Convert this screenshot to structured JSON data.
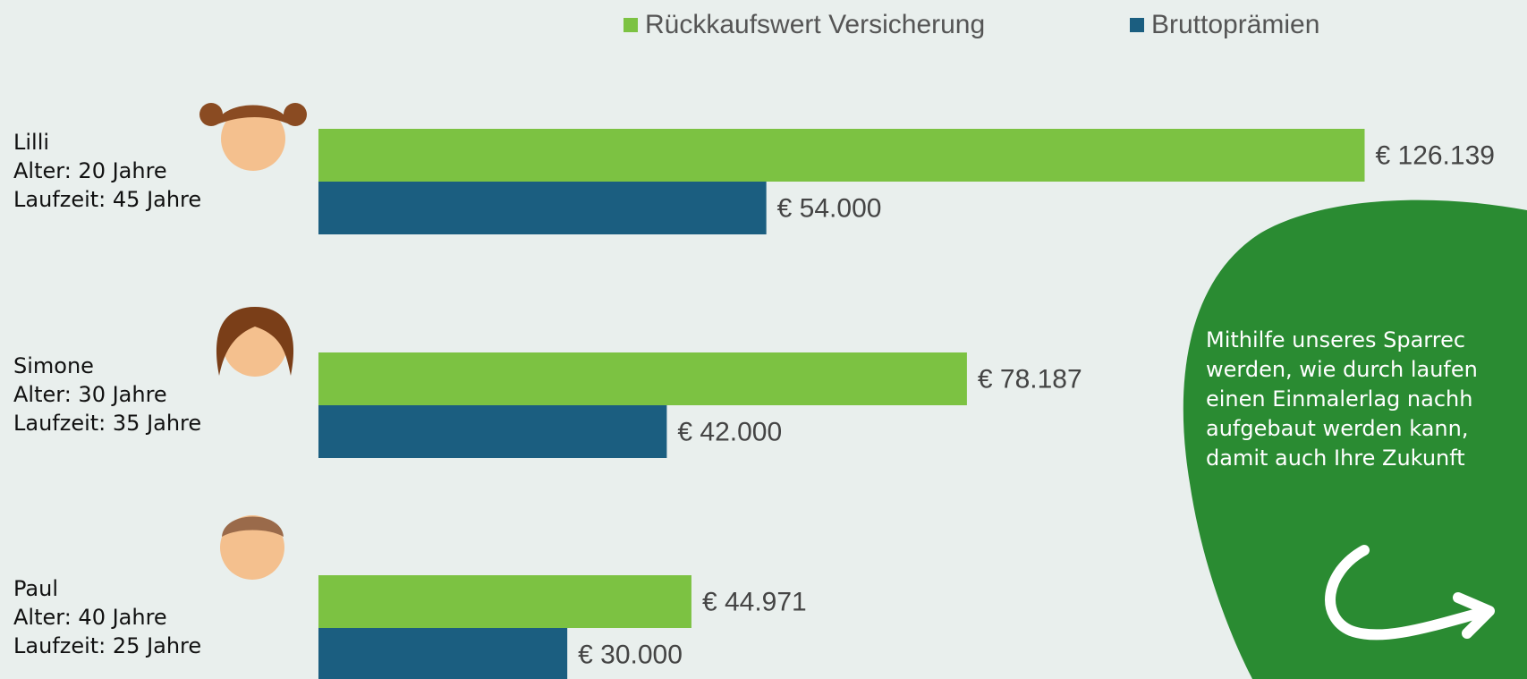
{
  "chart_data": {
    "type": "hbar",
    "categories": [
      "Lilli",
      "Simone",
      "Paul"
    ],
    "details": [
      [
        "Alter: 20 Jahre",
        "Laufzeit: 45 Jahre"
      ],
      [
        "Alter: 30 Jahre",
        "Laufzeit: 35 Jahre"
      ],
      [
        "Alter: 40 Jahre",
        "Laufzeit: 25 Jahre"
      ]
    ],
    "series": [
      {
        "name": "Rückkaufswert Versicherung",
        "color": "#7cc242",
        "values": [
          126139,
          78187,
          44971
        ],
        "value_labels": [
          "€ 126.139",
          "€ 78.187",
          "€ 44.971"
        ]
      },
      {
        "name": "Bruttoprämien",
        "color": "#1b5e80",
        "values": [
          54000,
          42000,
          30000
        ],
        "value_labels": [
          "€ 54.000",
          "€ 42.000",
          "€ 30.000"
        ]
      }
    ],
    "xlim": [
      0,
      140000
    ],
    "legend": "top"
  },
  "panel": {
    "lines": [
      "Mithilfe unseres Sparrec",
      "werden, wie durch laufen",
      "einen Einmalerlag nachh",
      "aufgebaut werden kann,",
      "damit auch Ihre Zukunft"
    ]
  }
}
